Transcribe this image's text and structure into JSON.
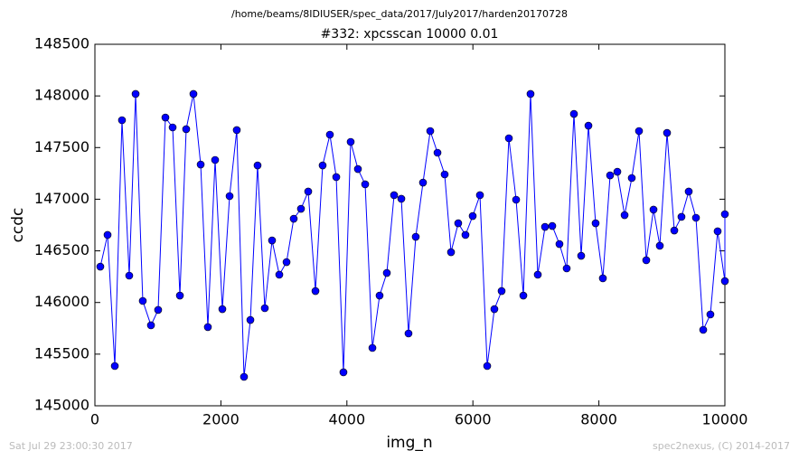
{
  "chart_data": {
    "type": "line",
    "suptitle": "/home/beams/8IDIUSER/spec_data/2017/July2017/harden20170728",
    "title": "#332: xpcsscan 10000 0.01",
    "xlabel": "img_n",
    "ylabel": "ccdc",
    "color": "#0000ff",
    "marker": true,
    "xlim": [
      0,
      10000
    ],
    "ylim": [
      145000,
      148500
    ],
    "xticks": [
      0,
      2000,
      4000,
      6000,
      8000,
      10000
    ],
    "yticks": [
      145000,
      145500,
      146000,
      146500,
      147000,
      147500,
      148000,
      148500
    ],
    "x": [
      86,
      201,
      316,
      430,
      545,
      646,
      760,
      890,
      1004,
      1119,
      1234,
      1349,
      1449,
      1564,
      1679,
      1793,
      1908,
      2023,
      2138,
      2252,
      2367,
      2468,
      2582,
      2697,
      2812,
      2927,
      3042,
      3156,
      3271,
      3386,
      3501,
      3615,
      3730,
      3831,
      3945,
      4060,
      4175,
      4290,
      4405,
      4519,
      4634,
      4749,
      4864,
      4978,
      5093,
      5208,
      5323,
      5438,
      5552,
      5653,
      5767,
      5882,
      5997,
      6112,
      6227,
      6341,
      6456,
      6571,
      6686,
      6801,
      6915,
      7030,
      7145,
      7260,
      7374,
      7489,
      7604,
      7719,
      7834,
      7948,
      8063,
      8178,
      8293,
      8408,
      8522,
      8637,
      8752,
      8867,
      8967,
      9082,
      9197,
      9311,
      9426,
      9541,
      9656,
      9770,
      9885,
      10000,
      10000
    ],
    "values": [
      146347,
      146654,
      145385,
      147765,
      146260,
      148019,
      146015,
      145779,
      145928,
      147791,
      147695,
      146067,
      147678,
      148019,
      147336,
      145762,
      147380,
      145936,
      147030,
      147669,
      145280,
      145831,
      147327,
      145945,
      146601,
      146269,
      146391,
      146811,
      146907,
      147074,
      146111,
      147327,
      147625,
      147214,
      145324,
      147555,
      147292,
      147144,
      145560,
      146067,
      146286,
      147039,
      147004,
      145700,
      146636,
      147161,
      147660,
      147450,
      147240,
      146487,
      146767,
      146654,
      146837,
      147039,
      145385,
      145936,
      146111,
      147590,
      146995,
      146067,
      148019,
      146269,
      146732,
      146741,
      146566,
      146330,
      147826,
      146452,
      147712,
      146767,
      146234,
      147231,
      147266,
      146846,
      147205,
      147660,
      146409,
      146899,
      146549,
      147642,
      146697,
      146829,
      147074,
      146820,
      145735,
      145884,
      146689,
      146207,
      146855
    ]
  },
  "footer": {
    "left": "Sat Jul 29 23:00:30 2017",
    "right": "spec2nexus, (C) 2014-2017"
  }
}
